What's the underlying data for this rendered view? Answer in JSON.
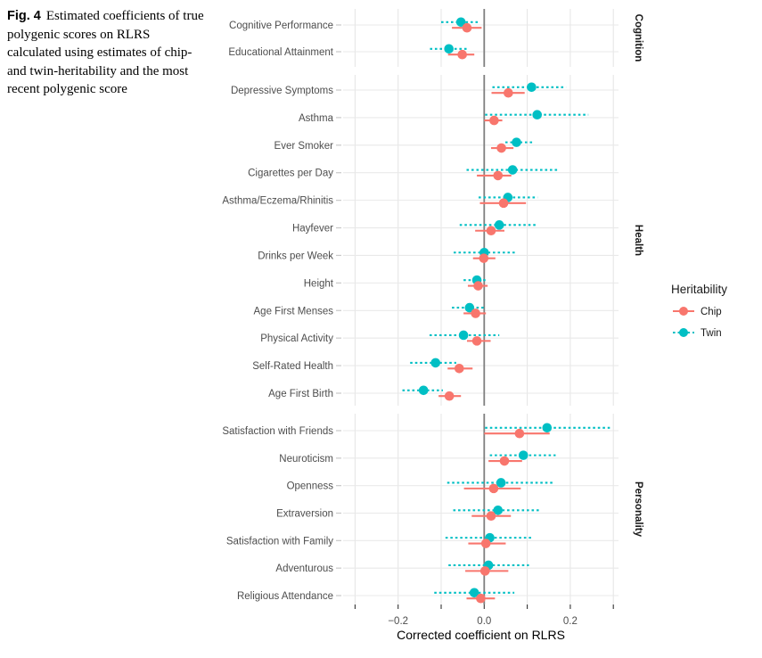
{
  "caption": {
    "label": "Fig. 4",
    "text": "Estimated coefficients of true polygenic scores on RLRS calculated using estimates of chip- and twin-heritability and the most recent polygenic score"
  },
  "chart_data": {
    "type": "scatter",
    "subtype": "forest-plot-with-error-bars",
    "xlabel": "Corrected coefficient on RLRS",
    "ylabel": "",
    "x_range": [
      -0.33,
      0.32
    ],
    "grid": true,
    "x_gridlines": [
      -0.3,
      -0.2,
      -0.1,
      0.0,
      0.1,
      0.2,
      0.3
    ],
    "x_tick_marks": [
      -0.3,
      -0.2,
      -0.1,
      0.0,
      0.1,
      0.2,
      0.3
    ],
    "x_ticks": [
      {
        "value": -0.2,
        "label": "−0.2"
      },
      {
        "value": 0.0,
        "label": "0.0"
      },
      {
        "value": 0.2,
        "label": "0.2"
      }
    ],
    "zero_line": 0.0,
    "colors": {
      "chip": "#F8766D",
      "twin": "#00BFC4",
      "grid": "#E6E6E6",
      "row_grid": "#E9E9E9",
      "zero_line": "#7F7F7F",
      "axis_text": "#4D4D4D",
      "axis_title": "#000000",
      "strip_text": "#1A1A1A",
      "tick_mark": "#333333",
      "y_tick_mark": "#C8C8C8"
    },
    "legend": {
      "title": "Heritability",
      "position": "right",
      "items": [
        {
          "name": "Chip",
          "color": "#F8766D",
          "line": "solid"
        },
        {
          "name": "Twin",
          "color": "#00BFC4",
          "line": "dashed"
        }
      ]
    },
    "facets": [
      {
        "label": "Cognition",
        "rows": [
          {
            "label": "Cognitive Performance",
            "chip": {
              "est": -0.04,
              "lo": -0.075,
              "hi": -0.006
            },
            "twin": {
              "est": -0.054,
              "lo": -0.1,
              "hi": -0.01
            }
          },
          {
            "label": "Educational Attainment",
            "chip": {
              "est": -0.051,
              "lo": -0.084,
              "hi": -0.023
            },
            "twin": {
              "est": -0.082,
              "lo": -0.126,
              "hi": -0.038
            }
          }
        ]
      },
      {
        "label": "Health",
        "rows": [
          {
            "label": "Depressive Symptoms",
            "chip": {
              "est": 0.056,
              "lo": 0.017,
              "hi": 0.094
            },
            "twin": {
              "est": 0.11,
              "lo": 0.019,
              "hi": 0.19
            }
          },
          {
            "label": "Asthma",
            "chip": {
              "est": 0.023,
              "lo": 0.0,
              "hi": 0.042
            },
            "twin": {
              "est": 0.123,
              "lo": 0.002,
              "hi": 0.242
            }
          },
          {
            "label": "Ever Smoker",
            "chip": {
              "est": 0.04,
              "lo": 0.016,
              "hi": 0.068
            },
            "twin": {
              "est": 0.075,
              "lo": 0.049,
              "hi": 0.112
            }
          },
          {
            "label": "Cigarettes per Day",
            "chip": {
              "est": 0.032,
              "lo": -0.017,
              "hi": 0.063
            },
            "twin": {
              "est": 0.066,
              "lo": -0.041,
              "hi": 0.174
            }
          },
          {
            "label": "Asthma/Eczema/Rhinitis",
            "chip": {
              "est": 0.045,
              "lo": -0.01,
              "hi": 0.097
            },
            "twin": {
              "est": 0.055,
              "lo": -0.013,
              "hi": 0.124
            }
          },
          {
            "label": "Hayfever",
            "chip": {
              "est": 0.016,
              "lo": -0.021,
              "hi": 0.047
            },
            "twin": {
              "est": 0.035,
              "lo": -0.057,
              "hi": 0.122
            }
          },
          {
            "label": "Drinks per Week",
            "chip": {
              "est": -0.001,
              "lo": -0.026,
              "hi": 0.026
            },
            "twin": {
              "est": 0.0,
              "lo": -0.071,
              "hi": 0.073
            }
          },
          {
            "label": "Height",
            "chip": {
              "est": -0.014,
              "lo": -0.038,
              "hi": 0.008
            },
            "twin": {
              "est": -0.017,
              "lo": -0.048,
              "hi": 0.008
            }
          },
          {
            "label": "Age First Menses",
            "chip": {
              "est": -0.02,
              "lo": -0.048,
              "hi": 0.004
            },
            "twin": {
              "est": -0.034,
              "lo": -0.075,
              "hi": 0.0
            }
          },
          {
            "label": "Physical Activity",
            "chip": {
              "est": -0.017,
              "lo": -0.04,
              "hi": 0.015
            },
            "twin": {
              "est": -0.048,
              "lo": -0.127,
              "hi": 0.035
            }
          },
          {
            "label": "Self-Rated Health",
            "chip": {
              "est": -0.058,
              "lo": -0.085,
              "hi": -0.027
            },
            "twin": {
              "est": -0.113,
              "lo": -0.172,
              "hi": -0.065
            }
          },
          {
            "label": "Age First Birth",
            "chip": {
              "est": -0.081,
              "lo": -0.106,
              "hi": -0.054
            },
            "twin": {
              "est": -0.141,
              "lo": -0.19,
              "hi": -0.096
            }
          }
        ]
      },
      {
        "label": "Personality",
        "rows": [
          {
            "label": "Satisfaction with Friends",
            "chip": {
              "est": 0.082,
              "lo": 0.0,
              "hi": 0.152
            },
            "twin": {
              "est": 0.146,
              "lo": 0.002,
              "hi": 0.292
            }
          },
          {
            "label": "Neuroticism",
            "chip": {
              "est": 0.047,
              "lo": 0.01,
              "hi": 0.088
            },
            "twin": {
              "est": 0.091,
              "lo": 0.013,
              "hi": 0.166
            }
          },
          {
            "label": "Openness",
            "chip": {
              "est": 0.022,
              "lo": -0.047,
              "hi": 0.085
            },
            "twin": {
              "est": 0.039,
              "lo": -0.086,
              "hi": 0.159
            }
          },
          {
            "label": "Extraversion",
            "chip": {
              "est": 0.016,
              "lo": -0.029,
              "hi": 0.062
            },
            "twin": {
              "est": 0.032,
              "lo": -0.072,
              "hi": 0.13
            }
          },
          {
            "label": "Satisfaction with Family",
            "chip": {
              "est": 0.004,
              "lo": -0.037,
              "hi": 0.05
            },
            "twin": {
              "est": 0.013,
              "lo": -0.09,
              "hi": 0.114
            }
          },
          {
            "label": "Adventurous",
            "chip": {
              "est": 0.002,
              "lo": -0.044,
              "hi": 0.056
            },
            "twin": {
              "est": 0.01,
              "lo": -0.083,
              "hi": 0.104
            }
          },
          {
            "label": "Religious Attendance",
            "chip": {
              "est": -0.008,
              "lo": -0.041,
              "hi": 0.025
            },
            "twin": {
              "est": -0.023,
              "lo": -0.116,
              "hi": 0.07
            }
          }
        ]
      }
    ]
  }
}
